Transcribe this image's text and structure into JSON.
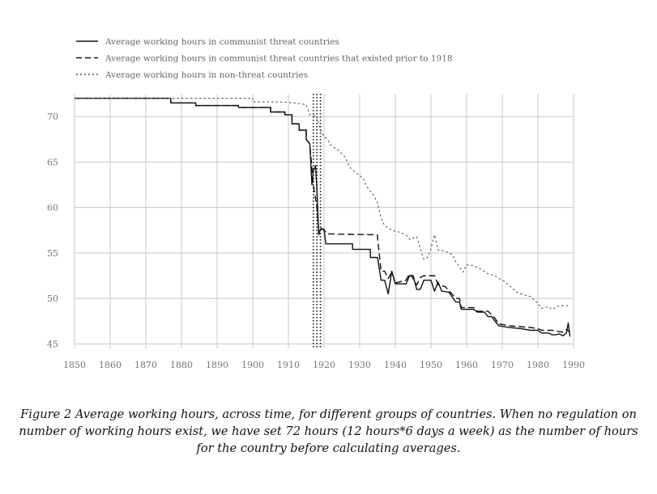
{
  "chart_data": {
    "type": "line",
    "title": "",
    "xlabel": "",
    "ylabel": "",
    "xlim": [
      1850,
      1990
    ],
    "ylim": [
      44.5,
      72.5
    ],
    "x_ticks": [
      1850,
      1860,
      1870,
      1880,
      1890,
      1900,
      1910,
      1920,
      1930,
      1940,
      1950,
      1960,
      1970,
      1980,
      1990
    ],
    "y_ticks": [
      45,
      50,
      55,
      60,
      65,
      70
    ],
    "grid": true,
    "legend_position": "top-left",
    "reference_lines_x": [
      1917,
      1918,
      1919
    ],
    "series": [
      {
        "name": "Average working hours in communist threat countries",
        "style": "solid",
        "color": "#111111",
        "points": [
          [
            1850,
            72
          ],
          [
            1877,
            72
          ],
          [
            1877,
            71.5
          ],
          [
            1884,
            71.5
          ],
          [
            1884,
            71.2
          ],
          [
            1896,
            71.2
          ],
          [
            1896,
            71
          ],
          [
            1905,
            71
          ],
          [
            1905,
            70.5
          ],
          [
            1909,
            70.5
          ],
          [
            1909,
            70.2
          ],
          [
            1911,
            70.2
          ],
          [
            1911,
            69.2
          ],
          [
            1913,
            69.2
          ],
          [
            1913,
            68.5
          ],
          [
            1915,
            68.5
          ],
          [
            1915,
            67.5
          ],
          [
            1916,
            67
          ],
          [
            1916.6,
            62.5
          ],
          [
            1917,
            64
          ],
          [
            1917.6,
            64.6
          ],
          [
            1918,
            62
          ],
          [
            1918.5,
            57
          ],
          [
            1919,
            57.6
          ],
          [
            1920,
            57.6
          ],
          [
            1920.5,
            56
          ],
          [
            1928,
            56
          ],
          [
            1928,
            55.4
          ],
          [
            1933,
            55.4
          ],
          [
            1933,
            54.5
          ],
          [
            1935,
            54.5
          ],
          [
            1936,
            52
          ],
          [
            1937,
            52
          ],
          [
            1938,
            50.5
          ],
          [
            1939,
            53
          ],
          [
            1940,
            51.6
          ],
          [
            1943,
            51.6
          ],
          [
            1944,
            52.5
          ],
          [
            1945,
            52.5
          ],
          [
            1946,
            51
          ],
          [
            1947,
            51
          ],
          [
            1948,
            52
          ],
          [
            1950,
            52
          ],
          [
            1951,
            50.8
          ],
          [
            1952,
            51.8
          ],
          [
            1953,
            50.8
          ],
          [
            1955,
            50.7
          ],
          [
            1957,
            49.6
          ],
          [
            1958,
            49.6
          ],
          [
            1958.5,
            48.8
          ],
          [
            1962,
            48.8
          ],
          [
            1963,
            48.5
          ],
          [
            1965,
            48.5
          ],
          [
            1966,
            48
          ],
          [
            1967,
            48
          ],
          [
            1968,
            47.5
          ],
          [
            1969,
            47
          ],
          [
            1972,
            46.8
          ],
          [
            1975,
            46.7
          ],
          [
            1978,
            46.5
          ],
          [
            1980,
            46.5
          ],
          [
            1981,
            46.2
          ],
          [
            1983,
            46.2
          ],
          [
            1984,
            46
          ],
          [
            1985,
            46
          ],
          [
            1986,
            46.1
          ],
          [
            1987,
            45.9
          ],
          [
            1988,
            46.2
          ],
          [
            1988.5,
            47.3
          ],
          [
            1989,
            45.8
          ]
        ]
      },
      {
        "name": "Average working hours in communist threat countries that existed prior to 1918",
        "style": "dashed",
        "color": "#111111",
        "points": [
          [
            1850,
            72
          ],
          [
            1877,
            72
          ],
          [
            1877,
            71.5
          ],
          [
            1884,
            71.5
          ],
          [
            1884,
            71.2
          ],
          [
            1896,
            71.2
          ],
          [
            1896,
            71
          ],
          [
            1905,
            71
          ],
          [
            1905,
            70.5
          ],
          [
            1909,
            70.5
          ],
          [
            1909,
            70.2
          ],
          [
            1911,
            70.2
          ],
          [
            1911,
            69.2
          ],
          [
            1913,
            69.2
          ],
          [
            1913,
            68.5
          ],
          [
            1915,
            68.5
          ],
          [
            1915,
            67.5
          ],
          [
            1916,
            67
          ],
          [
            1917,
            62.5
          ],
          [
            1918,
            60
          ],
          [
            1918.5,
            57.5
          ],
          [
            1919,
            57.8
          ],
          [
            1920,
            57.5
          ],
          [
            1921,
            57.1
          ],
          [
            1935,
            57
          ],
          [
            1935,
            56.7
          ],
          [
            1936,
            53
          ],
          [
            1937,
            53
          ],
          [
            1938,
            52.2
          ],
          [
            1939,
            52.9
          ],
          [
            1940,
            51.7
          ],
          [
            1943,
            52
          ],
          [
            1944,
            52.7
          ],
          [
            1945,
            52.2
          ],
          [
            1946,
            51.5
          ],
          [
            1947,
            52.3
          ],
          [
            1948,
            52.5
          ],
          [
            1951,
            52.5
          ],
          [
            1952,
            51.5
          ],
          [
            1954,
            51.3
          ],
          [
            1957,
            50
          ],
          [
            1958,
            50
          ],
          [
            1958.5,
            49
          ],
          [
            1962,
            49
          ],
          [
            1963,
            48.6
          ],
          [
            1966,
            48.6
          ],
          [
            1967,
            48.2
          ],
          [
            1968,
            47.8
          ],
          [
            1969,
            47.2
          ],
          [
            1972,
            47
          ],
          [
            1975,
            46.9
          ],
          [
            1978,
            46.8
          ],
          [
            1980,
            46.7
          ],
          [
            1981,
            46.5
          ],
          [
            1984,
            46.5
          ],
          [
            1985,
            46.4
          ],
          [
            1987,
            46.3
          ],
          [
            1988,
            46.6
          ],
          [
            1989,
            46.3
          ]
        ]
      },
      {
        "name": "Average working hours in non-threat countries",
        "style": "dotted",
        "color": "#555555",
        "points": [
          [
            1850,
            72
          ],
          [
            1900,
            72
          ],
          [
            1900,
            71.6
          ],
          [
            1908,
            71.6
          ],
          [
            1912,
            71.5
          ],
          [
            1915,
            71.3
          ],
          [
            1916,
            70.2
          ],
          [
            1918,
            70
          ],
          [
            1919,
            68.5
          ],
          [
            1920,
            67.8
          ],
          [
            1921,
            67.5
          ],
          [
            1922,
            66.8
          ],
          [
            1924,
            66.3
          ],
          [
            1926,
            65.5
          ],
          [
            1927,
            64.5
          ],
          [
            1929,
            63.8
          ],
          [
            1931,
            63.2
          ],
          [
            1932,
            62.3
          ],
          [
            1934,
            61.3
          ],
          [
            1935,
            60.5
          ],
          [
            1936,
            58.8
          ],
          [
            1937,
            58
          ],
          [
            1939,
            57.5
          ],
          [
            1941,
            57.3
          ],
          [
            1943,
            57
          ],
          [
            1944,
            56.5
          ],
          [
            1946,
            56.8
          ],
          [
            1947,
            55.5
          ],
          [
            1948,
            54.3
          ],
          [
            1949,
            54.5
          ],
          [
            1950,
            55.5
          ],
          [
            1951,
            57
          ],
          [
            1952,
            55.3
          ],
          [
            1954,
            55.2
          ],
          [
            1956,
            54.8
          ],
          [
            1957,
            54
          ],
          [
            1958,
            53.5
          ],
          [
            1959,
            52.9
          ],
          [
            1960,
            53.7
          ],
          [
            1962,
            53.6
          ],
          [
            1963,
            53.4
          ],
          [
            1964,
            53.2
          ],
          [
            1966,
            52.7
          ],
          [
            1968,
            52.5
          ],
          [
            1969,
            52.2
          ],
          [
            1971,
            51.8
          ],
          [
            1972,
            51.4
          ],
          [
            1974,
            50.7
          ],
          [
            1976,
            50.4
          ],
          [
            1978,
            50.2
          ],
          [
            1979,
            49.8
          ],
          [
            1980,
            49.5
          ],
          [
            1981,
            48.9
          ],
          [
            1983,
            49.1
          ],
          [
            1984,
            48.8
          ],
          [
            1986,
            49.2
          ],
          [
            1989,
            49.2
          ]
        ]
      }
    ]
  },
  "caption": "Figure 2 Average working hours, across time, for different groups of countries. When no regulation on number of working hours exist, we have set 72 hours (12 hours*6 days a week) as the number of hours for the country before calculating averages."
}
